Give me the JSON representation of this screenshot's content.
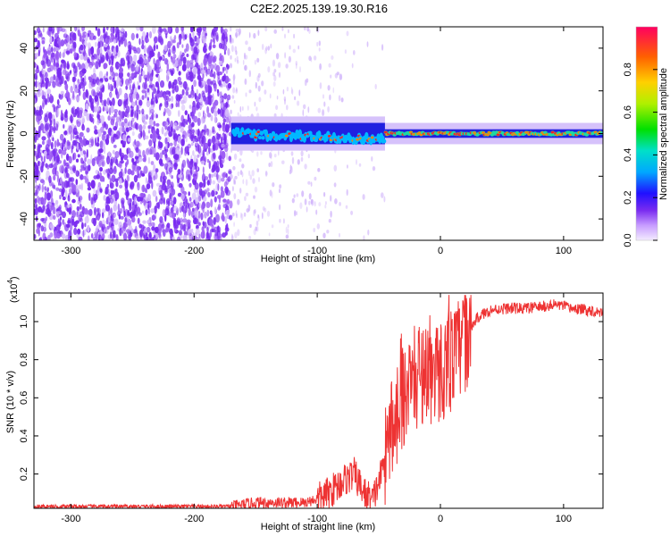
{
  "title": "C2E2.2025.139.19.30.R16",
  "colors": {
    "snr_line": "#ee3333",
    "spectro_bg": "#ffffff",
    "spectro_noise": "#7a2cf0",
    "spectro_core": "#1fd8a0",
    "spectro_peak": "#ff2020"
  },
  "chart_data": [
    {
      "type": "heatmap",
      "title": "C2E2.2025.139.19.30.R16",
      "xlabel": "Height of straight line (km)",
      "ylabel": "Frequency (Hz)",
      "xlim": [
        -330,
        132
      ],
      "ylim": [
        -50,
        50
      ],
      "x_ticks": [
        -300,
        -200,
        -100,
        0,
        100
      ],
      "y_ticks": [
        -40,
        -20,
        0,
        20,
        40
      ],
      "colorbar": {
        "label": "Normalized spectral amplitude",
        "range": [
          0,
          1
        ],
        "ticks": [
          0.0,
          0.2,
          0.4,
          0.6,
          0.8
        ],
        "colormap": "rainbow"
      },
      "regions": [
        {
          "x_range": [
            -330,
            -170
          ],
          "description": "broadband noise"
        },
        {
          "x_range": [
            -170,
            -45
          ],
          "center_freq": 0,
          "width_hz": 10
        },
        {
          "x_range": [
            -45,
            132
          ],
          "center_freq": 0,
          "width_hz": 4
        }
      ]
    },
    {
      "type": "line",
      "xlabel": "Height of straight line (km)",
      "ylabel": "SNR (10 * v/v)",
      "y_scale_label": "(x10",
      "y_scale_exp": "4",
      "xlim": [
        -330,
        132
      ],
      "ylim": [
        0.02,
        1.15
      ],
      "x_ticks": [
        -300,
        -200,
        -100,
        0,
        100
      ],
      "y_ticks": [
        0.2,
        0.4,
        0.6,
        0.8,
        1.0
      ],
      "series": [
        {
          "x": [
            -330,
            -250,
            -170,
            -150,
            -130,
            -110,
            -95,
            -85,
            -78,
            -70,
            -62,
            -55,
            -48,
            -42,
            -36,
            -30,
            -24,
            -18,
            -12,
            -6,
            0,
            6,
            12,
            18,
            24,
            30,
            40,
            55,
            70,
            85,
            95,
            105,
            120,
            132
          ],
          "y": [
            0.03,
            0.03,
            0.03,
            0.05,
            0.05,
            0.05,
            0.08,
            0.13,
            0.17,
            0.2,
            0.1,
            0.06,
            0.2,
            0.38,
            0.52,
            0.62,
            0.68,
            0.72,
            0.75,
            0.72,
            0.74,
            0.78,
            0.82,
            0.88,
            0.96,
            1.02,
            1.06,
            1.07,
            1.07,
            1.08,
            1.09,
            1.07,
            1.06,
            1.05
          ]
        }
      ]
    }
  ]
}
